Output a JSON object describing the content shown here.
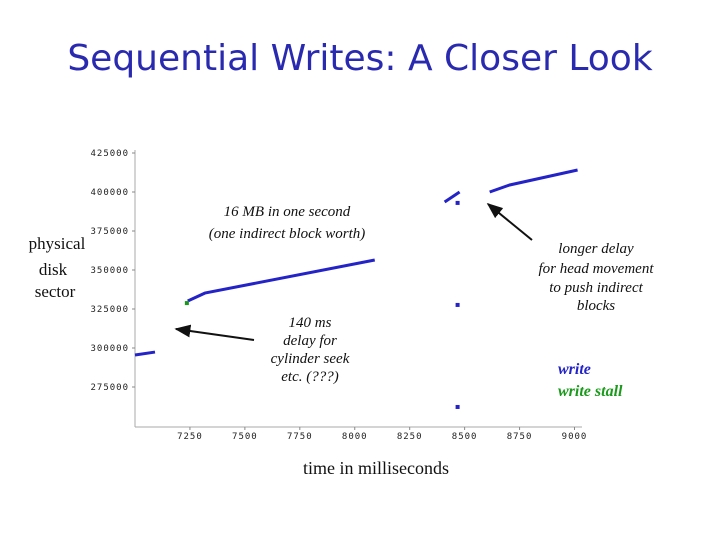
{
  "chart_data": {
    "type": "line",
    "title": "Sequential Writes: A Closer Look",
    "x_label": "time in milliseconds",
    "y_label": [
      "physical",
      "disk",
      "sector"
    ],
    "x": [
      7000,
      7091,
      7236,
      7240,
      7318,
      8091,
      null,
      8409,
      8477,
      null,
      8468,
      null,
      8468,
      null,
      8468,
      null,
      8614,
      8705,
      9014
    ],
    "series": [
      {
        "name": "write",
        "color": "#2323c8",
        "values": [
          295500,
          297400,
          null,
          330100,
          335200,
          356400,
          null,
          393600,
          400000,
          null,
          393000,
          null,
          327600,
          null,
          262200,
          null,
          400000,
          404500,
          414100
        ]
      },
      {
        "name": "write stall",
        "color": "#1a9a1a",
        "values": [
          null,
          null,
          328800,
          null,
          null,
          null,
          null,
          null,
          null,
          null,
          null,
          null,
          null,
          null,
          null,
          null,
          null,
          null,
          null
        ]
      }
    ],
    "xlim": [
      7000,
      9025
    ],
    "ylim": [
      250000,
      425000
    ],
    "xticks": [
      7250,
      7500,
      7750,
      8000,
      8250,
      8500,
      8750,
      9000
    ],
    "yticks": [
      275000,
      300000,
      325000,
      350000,
      375000,
      400000,
      425000
    ],
    "legend": "lower right",
    "annotations": [
      [
        "16 MB in one second",
        "(one indirect block worth)"
      ],
      [
        "140 ms",
        "delay for",
        "cylinder seek",
        "etc. (???)"
      ],
      [
        "longer delay",
        "for head movement",
        "to push indirect",
        "blocks"
      ]
    ]
  }
}
